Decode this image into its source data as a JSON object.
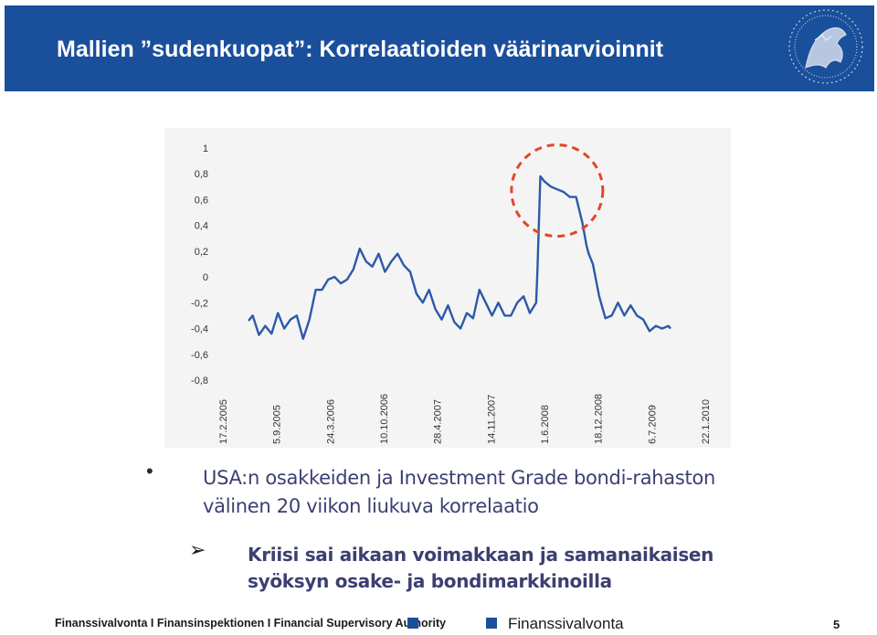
{
  "header": {
    "title": "Mallien ”sudenkuopat”: Korrelaatioiden väärinarvioinnit",
    "background": "#1a4f9b",
    "logo_icon": "lion-emblem-icon"
  },
  "chart_data": {
    "type": "line",
    "title": "",
    "xlabel": "",
    "ylabel": "",
    "ylim": [
      -0.8,
      1
    ],
    "yticks": [
      "1",
      "0,8",
      "0,6",
      "0,4",
      "0,2",
      "0",
      "-0,2",
      "-0,4",
      "-0,6",
      "-0,8"
    ],
    "ytick_values": [
      1,
      0.8,
      0.6,
      0.4,
      0.2,
      0,
      -0.2,
      -0.4,
      -0.6,
      -0.8
    ],
    "xticks": [
      "17.2.2005",
      "5.9.2005",
      "24.3.2006",
      "10.10.2006",
      "28.4.2007",
      "14.11.2007",
      "1.6.2008",
      "18.12.2008",
      "6.7.2009",
      "22.1.2010"
    ],
    "grid": false,
    "line_color": "#2b5aa8",
    "highlight_color": "#e2462a",
    "highlight_center": {
      "x": 0.81,
      "y": 0.67
    },
    "series": [
      {
        "name": "",
        "x": [
          0,
          0.1,
          0.25,
          0.4,
          0.55,
          0.7,
          0.85,
          1,
          1.15,
          1.3,
          1.45,
          1.6,
          1.75,
          1.9,
          2.05,
          2.2,
          2.35,
          2.5,
          2.65,
          2.8,
          2.95,
          3.1,
          3.25,
          3.4,
          3.55,
          3.7,
          3.85,
          4,
          4.15,
          4.3,
          4.45,
          4.6,
          4.75,
          4.9,
          5.05,
          5.2,
          5.35,
          5.5,
          5.65,
          5.8,
          5.95,
          6.1,
          6.25,
          6.4,
          6.55,
          6.7,
          6.85,
          6.88,
          6.95,
          7.05,
          7.2,
          7.35,
          7.5,
          7.65,
          7.8,
          7.95,
          8.05,
          8.1,
          8.2,
          8.35,
          8.5,
          8.65,
          8.8,
          8.95,
          9.1,
          9.25,
          9.4,
          9.55,
          9.7,
          9.85,
          10,
          10.05
        ],
        "values": [
          -0.34,
          -0.3,
          -0.45,
          -0.38,
          -0.44,
          -0.28,
          -0.4,
          -0.33,
          -0.3,
          -0.48,
          -0.33,
          -0.1,
          -0.1,
          -0.02,
          0,
          -0.05,
          -0.02,
          0.06,
          0.22,
          0.12,
          0.08,
          0.18,
          0.04,
          0.12,
          0.18,
          0.09,
          0.04,
          -0.13,
          -0.2,
          -0.1,
          -0.25,
          -0.33,
          -0.22,
          -0.35,
          -0.4,
          -0.28,
          -0.32,
          -0.1,
          -0.2,
          -0.3,
          -0.2,
          -0.3,
          -0.3,
          -0.2,
          -0.15,
          -0.28,
          -0.2,
          0.05,
          0.78,
          0.74,
          0.7,
          0.68,
          0.66,
          0.62,
          0.62,
          0.42,
          0.24,
          0.18,
          0.1,
          -0.15,
          -0.32,
          -0.3,
          -0.2,
          -0.3,
          -0.22,
          -0.3,
          -0.33,
          -0.42,
          -0.38,
          -0.4,
          -0.38,
          -0.4
        ]
      }
    ]
  },
  "bullets": {
    "dot": "•",
    "item1": "USA:n osakkeiden ja Investment Grade bondi-rahaston välinen 20 viikon liukuva korrelaatio",
    "arrow": "➢",
    "item2": "Kriisi sai aikaan voimakkaan ja samanaikaisen syöksyn osake- ja bondimarkkinoilla"
  },
  "footer": {
    "left_text": "Finanssivalvonta I Finansinspektionen I Financial Supervisory Authority",
    "brand": "Finanssivalvonta",
    "page_number": "5",
    "accent": "#1a4f9b"
  }
}
